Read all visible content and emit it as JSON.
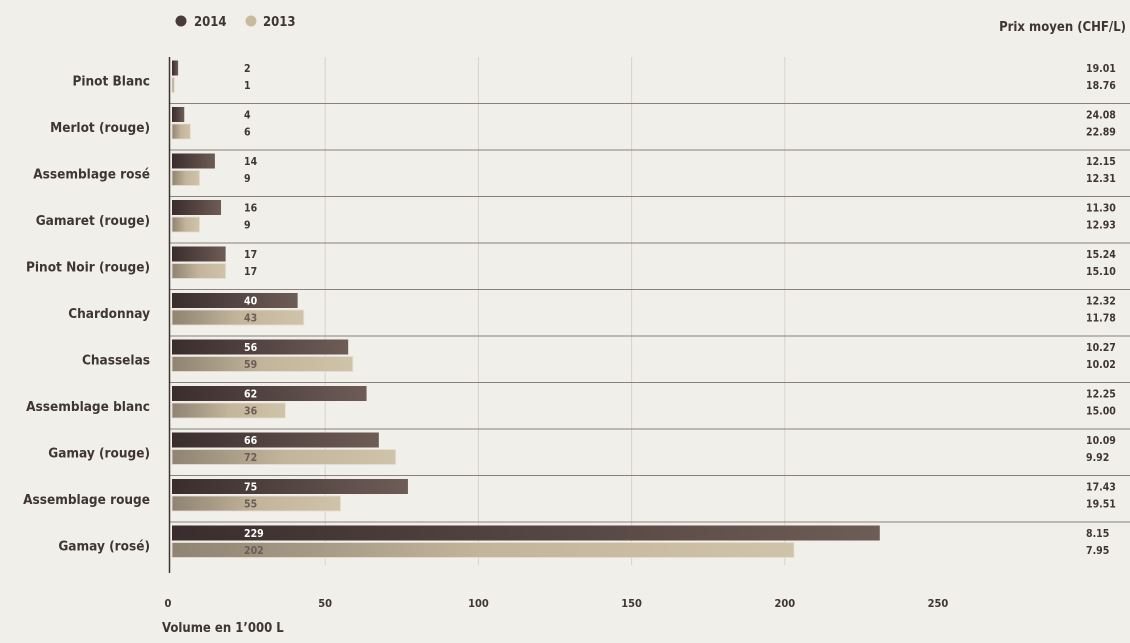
{
  "chart_data": {
    "type": "bar",
    "orientation": "horizontal",
    "categories": [
      "Pinot Blanc",
      "Merlot (rouge)",
      "Assemblage rosé",
      "Gamaret (rouge)",
      "Pinot Noir (rouge)",
      "Chardonnay",
      "Chasselas",
      "Assemblage blanc",
      "Gamay (rouge)",
      "Assemblage rouge",
      "Gamay (rosé)"
    ],
    "series": [
      {
        "name": "2014",
        "values": [
          2,
          4,
          14,
          16,
          17,
          40,
          56,
          62,
          66,
          75,
          229
        ],
        "plotted": [
          2,
          4,
          14,
          16,
          17.5,
          41,
          57.5,
          63.5,
          67.5,
          77,
          231
        ],
        "prices": [
          "19.01",
          "24.08",
          "12.15",
          "11.30",
          "15.24",
          "12.32",
          "10.27",
          "12.25",
          "10.09",
          "17.43",
          "8.15"
        ]
      },
      {
        "name": "2013",
        "values": [
          1,
          6,
          9,
          9,
          17,
          43,
          59,
          36,
          72,
          55,
          202
        ],
        "plotted": [
          0.8,
          6,
          9,
          9,
          17.5,
          43,
          59,
          37,
          73,
          55,
          203
        ],
        "prices": [
          "18.76",
          "22.89",
          "12.31",
          "12.93",
          "15.10",
          "11.78",
          "10.02",
          "15.00",
          "9.92",
          "19.51",
          "7.95"
        ]
      }
    ],
    "xlabel": "Volume en 1’000 L",
    "price_label": "Prix moyen (CHF/L)",
    "xlim": [
      0,
      250
    ],
    "xticks": [
      0,
      50,
      100,
      150,
      200,
      250
    ],
    "legend": "top-left",
    "grid": true,
    "colors": {
      "s2014": "#4a3b3b",
      "s2013": "#c9bb9f"
    }
  }
}
